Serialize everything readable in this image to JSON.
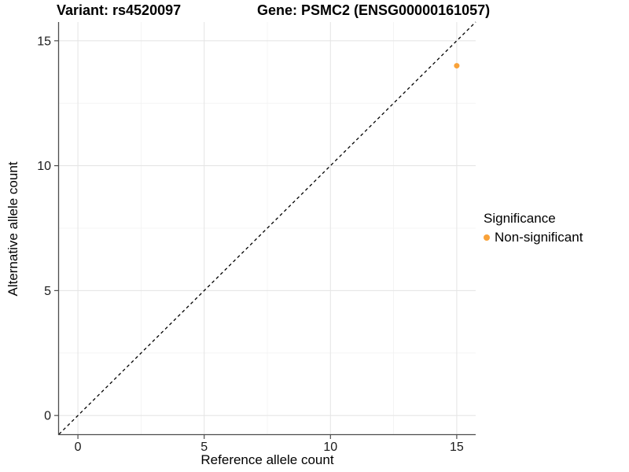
{
  "figure": {
    "background": "#FFFFFF"
  },
  "chart_data": {
    "type": "scatter",
    "titles": {
      "variant": "Variant: rs4520097",
      "gene": "Gene: PSMC2 (ENSG00000161057)"
    },
    "xlabel": "Reference allele count",
    "ylabel": "Alternative allele count",
    "xlim": [
      -0.75,
      15.75
    ],
    "ylim": [
      -0.75,
      15.75
    ],
    "x_major_ticks": [
      0,
      5,
      10,
      15
    ],
    "y_major_ticks": [
      0,
      5,
      10,
      15
    ],
    "x_minor_ticks": [
      2.5,
      7.5,
      12.5
    ],
    "y_minor_ticks": [
      2.5,
      7.5,
      12.5
    ],
    "grid": true,
    "identity_line": {
      "type": "dashed",
      "equation": "y = x",
      "color": "#000000"
    },
    "series": [
      {
        "name": "Non-significant",
        "color": "#F9A239",
        "points": [
          {
            "x": 15,
            "y": 14
          }
        ]
      }
    ],
    "legend": {
      "title": "Significance",
      "position": "right",
      "items": [
        {
          "label": "Non-significant",
          "color": "#F9A239",
          "marker": "circle"
        }
      ]
    },
    "colors": {
      "point": "#F9A239",
      "grid_major": "#E6E6E6",
      "grid_minor": "#F2F2F2",
      "axis_line": "#4D4D4D",
      "tick_text": "#1A1A1A",
      "text": "#000000"
    }
  }
}
